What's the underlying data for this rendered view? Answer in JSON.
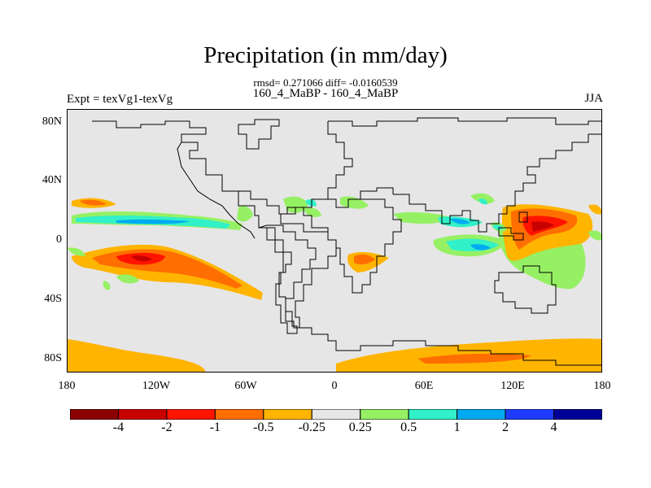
{
  "title": "Precipitation (in mm/day)",
  "stats_line": "rmsd= 0.271066 diff= -0.0160539",
  "case_line": "160_4_MaBP - 160_4_MaBP",
  "left_label": "Expt = texVg1-texVg",
  "right_label": "JJA",
  "y_ticks": [
    "80N",
    "40N",
    "0",
    "40S",
    "80S"
  ],
  "x_ticks": [
    "180",
    "120W",
    "60W",
    "0",
    "60E",
    "120E",
    "180"
  ],
  "colorbar": {
    "colors": [
      "#8b0000",
      "#c80000",
      "#ff1400",
      "#ff6e00",
      "#ffb400",
      "#e6e6e6",
      "#96f064",
      "#32f0c8",
      "#00aaf0",
      "#1e3cff",
      "#000096"
    ],
    "labels": [
      "-4",
      "-2",
      "-1",
      "-0.5",
      "-0.25",
      "0.25",
      "0.5",
      "1",
      "2",
      "4"
    ]
  },
  "colors": {
    "background": "#e6e6e6",
    "coastline": "#000000"
  }
}
